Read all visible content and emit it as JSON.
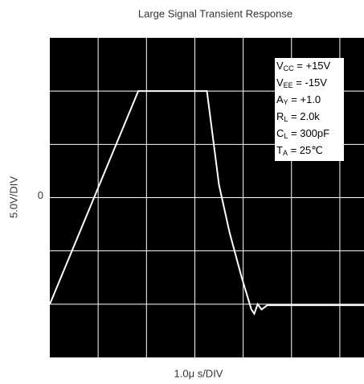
{
  "chart_data": {
    "type": "line",
    "title": "Large Signal Transient Response",
    "x_label": "1.0μ s/DIV",
    "y_label": "5.0V/DIV",
    "xlim": [
      0,
      6.5
    ],
    "ylim": [
      -15,
      15
    ],
    "yticks": [
      0
    ],
    "xgrid": [
      1,
      2,
      3,
      4,
      5,
      6
    ],
    "ygrid": [
      -10,
      -5,
      5,
      10
    ],
    "grid": true,
    "background": "#000000",
    "series": [
      {
        "color": "#ffffff",
        "x": [
          0,
          1.83,
          3.25,
          3.33,
          3.5,
          3.72,
          3.97,
          4.17,
          4.23,
          4.3,
          4.38,
          4.5,
          6.5
        ],
        "values": [
          -10,
          10,
          10,
          7.2,
          1.2,
          -3.3,
          -7.5,
          -10.5,
          -10.9,
          -10,
          -10.5,
          -10.1,
          -10.1
        ]
      }
    ],
    "annotations": [
      {
        "main": "V",
        "sub": "CC",
        "rest": " = +15V"
      },
      {
        "main": "V",
        "sub": "EE",
        "rest": " = -15V"
      },
      {
        "main": "A",
        "sub": "Y",
        "rest": " = +1.0"
      },
      {
        "main": "R",
        "sub": "L",
        "rest": " = 2.0k"
      },
      {
        "main": "C",
        "sub": "L",
        "rest": " = 300pF"
      },
      {
        "main": "T",
        "sub": "A",
        "rest": " = 25℃"
      }
    ]
  }
}
